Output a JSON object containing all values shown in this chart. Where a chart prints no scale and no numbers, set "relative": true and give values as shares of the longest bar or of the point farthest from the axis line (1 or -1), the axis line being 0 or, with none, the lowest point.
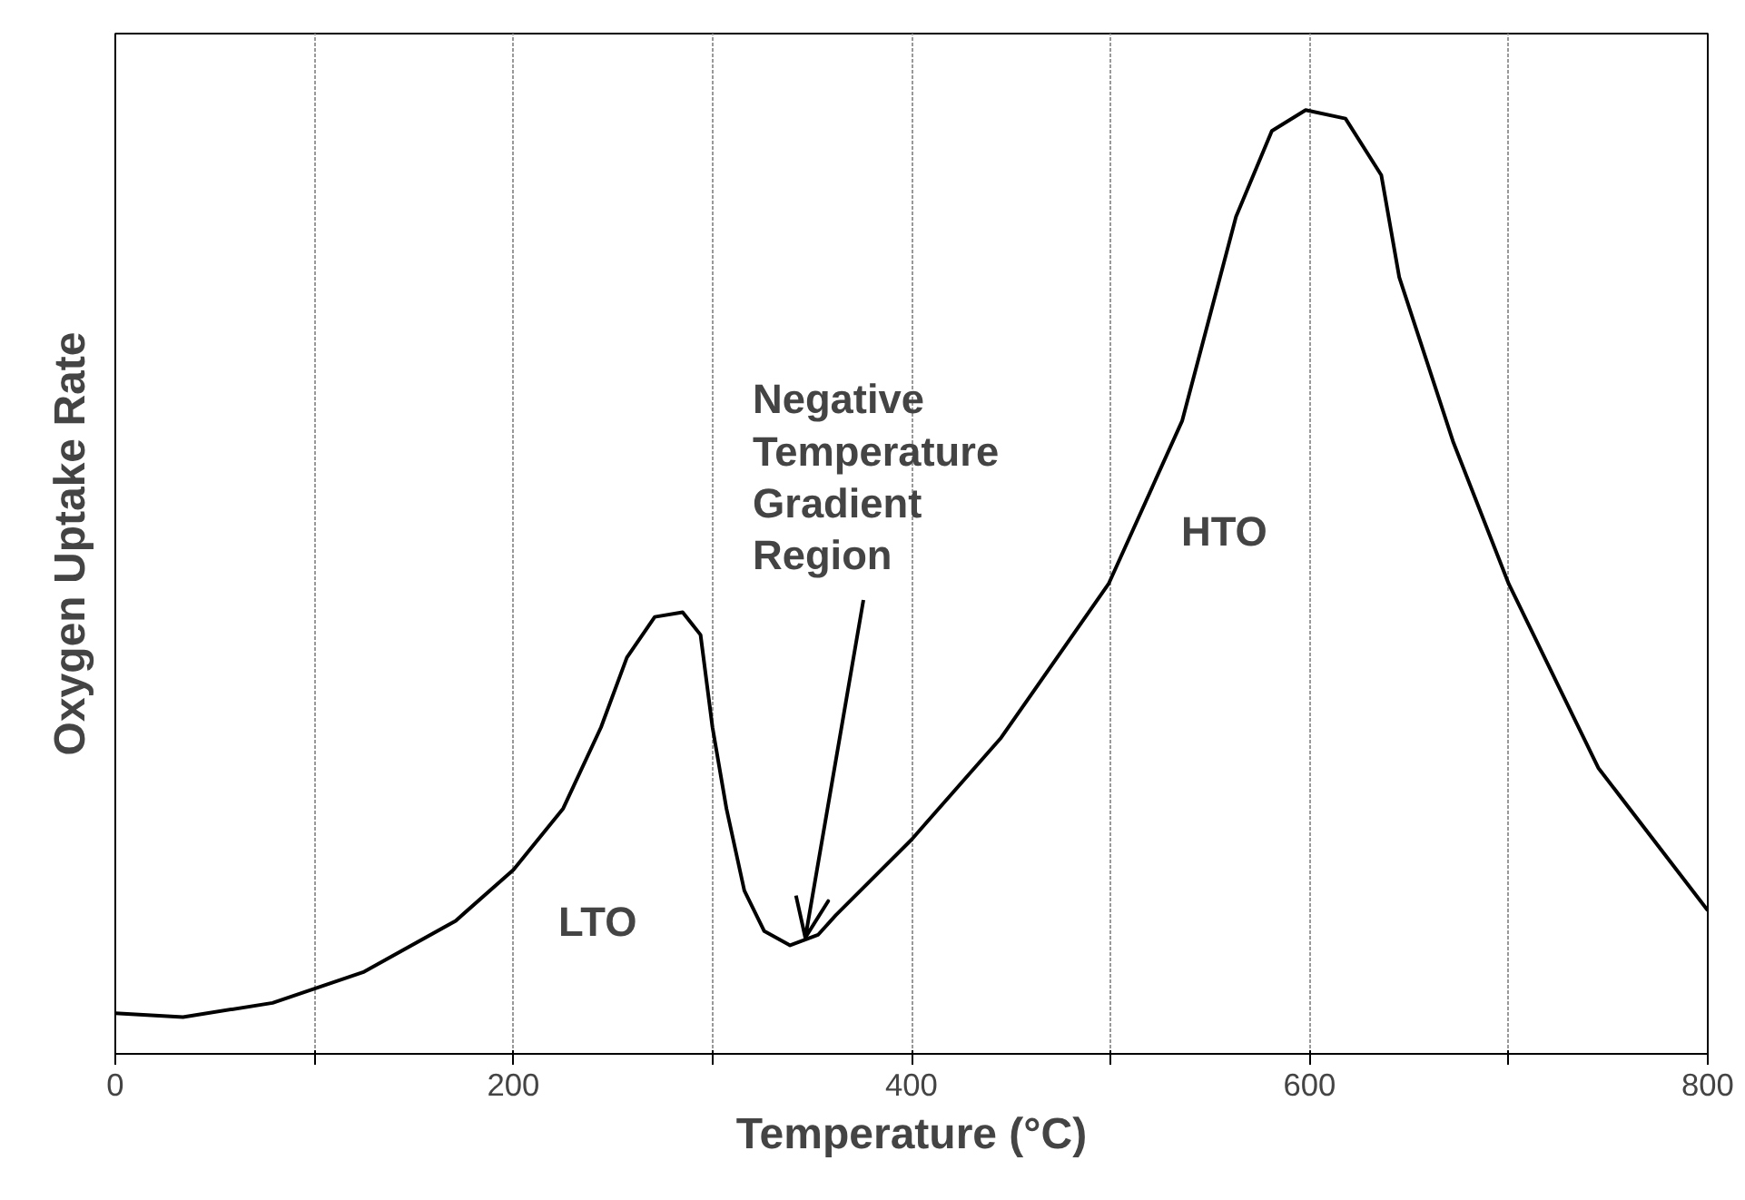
{
  "chart_data": {
    "type": "line",
    "xlabel": "Temperature (°C)",
    "ylabel": "Oxygen Uptake Rate",
    "relative": true,
    "xlim": [
      0,
      800
    ],
    "xticks": [
      0,
      {
        "value": 100,
        "label": null
      },
      200,
      {
        "value": 300,
        "label": null
      },
      400,
      {
        "value": 500,
        "label": null
      },
      600,
      {
        "value": 700,
        "label": null
      },
      800
    ],
    "grid": "x",
    "marker": "none",
    "line_style": "solid",
    "series": [
      {
        "color": "#000000",
        "x": [
          0,
          34,
          79,
          125,
          171,
          200,
          225,
          244,
          257,
          271,
          285,
          294,
          300,
          307,
          316,
          326,
          339,
          353,
          362,
          400,
          445,
          499,
          536,
          563,
          581,
          598,
          618,
          636,
          645,
          672,
          700,
          745,
          800
        ],
        "values": [
          0.043,
          0.039,
          0.054,
          0.087,
          0.141,
          0.195,
          0.26,
          0.346,
          0.42,
          0.463,
          0.468,
          0.444,
          0.346,
          0.26,
          0.173,
          0.13,
          0.115,
          0.126,
          0.147,
          0.227,
          0.335,
          0.498,
          0.671,
          0.887,
          0.978,
          1.0,
          0.991,
          0.931,
          0.823,
          0.649,
          0.498,
          0.303,
          0.152
        ]
      }
    ],
    "annotations": [
      "LTO",
      "HTO",
      "Negative Temperature Gradient Region"
    ]
  }
}
